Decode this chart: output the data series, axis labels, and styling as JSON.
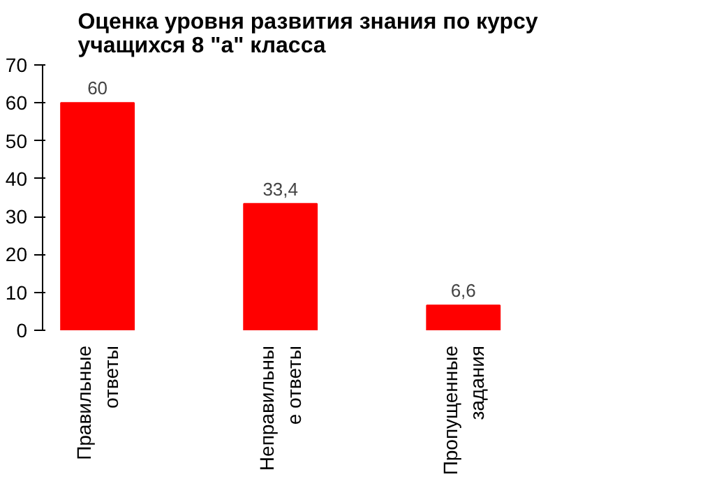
{
  "chart_data": {
    "type": "bar",
    "title": "Оценка уровня развития знания по курсу\nучащихся 8 \"а\" класса",
    "categories": [
      "Правильные\nответы",
      "Неправильны\nе ответы",
      "Пропущенные\nзадания"
    ],
    "values": [
      60,
      33.4,
      6.6
    ],
    "value_labels": [
      "60",
      "33,4",
      "6,6"
    ],
    "color": "#ff0000",
    "ylim": [
      0,
      70
    ],
    "yticks": [
      0,
      10,
      20,
      30,
      40,
      50,
      60,
      70
    ],
    "grid": false
  }
}
